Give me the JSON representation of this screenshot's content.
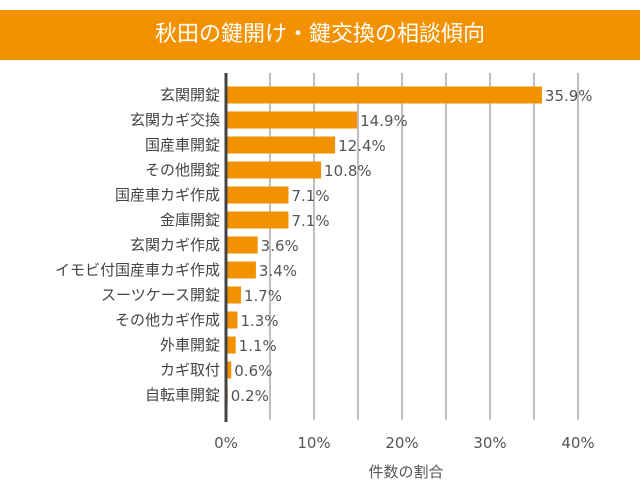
{
  "chart_data": {
    "type": "bar",
    "orientation": "horizontal",
    "title": "秋田の鍵開け・鍵交換の相談傾向",
    "categories": [
      "玄関開錠",
      "玄関カギ交換",
      "国産車開錠",
      "その他開錠",
      "国産車カギ作成",
      "金庫開錠",
      "玄関カギ作成",
      "イモビ付国産車カギ作成",
      "スーツケース開錠",
      "その他カギ作成",
      "外車開錠",
      "カギ取付",
      "自転車開錠"
    ],
    "values": [
      35.9,
      14.9,
      12.4,
      10.8,
      7.1,
      7.1,
      3.6,
      3.4,
      1.7,
      1.3,
      1.1,
      0.6,
      0.2
    ],
    "data_labels": [
      "35.9%",
      "14.9%",
      "12.4%",
      "10.8%",
      "7.1%",
      "7.1%",
      "3.6%",
      "3.4%",
      "1.7%",
      "1.3%",
      "1.1%",
      "0.6%",
      "0.2%"
    ],
    "xlabel": "件数の割合",
    "ylabel": "",
    "xlim": [
      0,
      40
    ],
    "x_ticks": [
      0,
      10,
      20,
      30,
      40
    ],
    "x_tick_labels": [
      "0%",
      "10%",
      "20%",
      "30%",
      "40%"
    ],
    "grid": "vertical every 5%",
    "colors": {
      "bar": "#f39200",
      "title_bg": "#f39200",
      "title_text": "#ffffff",
      "grid": "#aaaaaa",
      "axis": "#444444"
    }
  }
}
